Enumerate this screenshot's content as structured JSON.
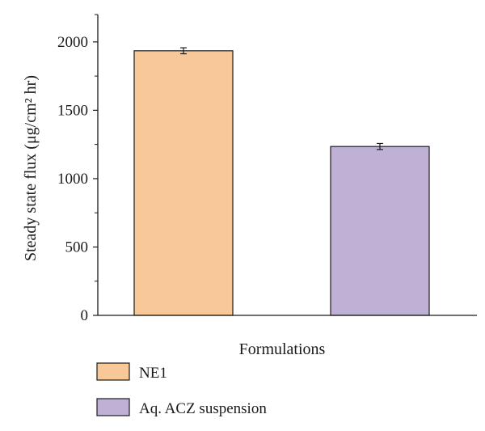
{
  "chart_data": {
    "type": "bar",
    "title": "",
    "xlabel": "Formulations",
    "ylabel": "Steady state flux (μg/cm² hr)",
    "categories": [
      "NE1",
      "Aq. ACZ suspension"
    ],
    "values": [
      1935,
      1235
    ],
    "errors": [
      22,
      22
    ],
    "colors": [
      "#f9c899",
      "#bfb0d6"
    ],
    "ylim": [
      0,
      2200
    ],
    "yticks": [
      0,
      500,
      1000,
      1500,
      2000
    ],
    "grid": false,
    "legend": {
      "placement": "bottom-left",
      "entries": [
        {
          "label": "NE1",
          "color": "#f9c899"
        },
        {
          "label": "Aq. ACZ suspension",
          "color": "#bfb0d6"
        }
      ]
    }
  }
}
